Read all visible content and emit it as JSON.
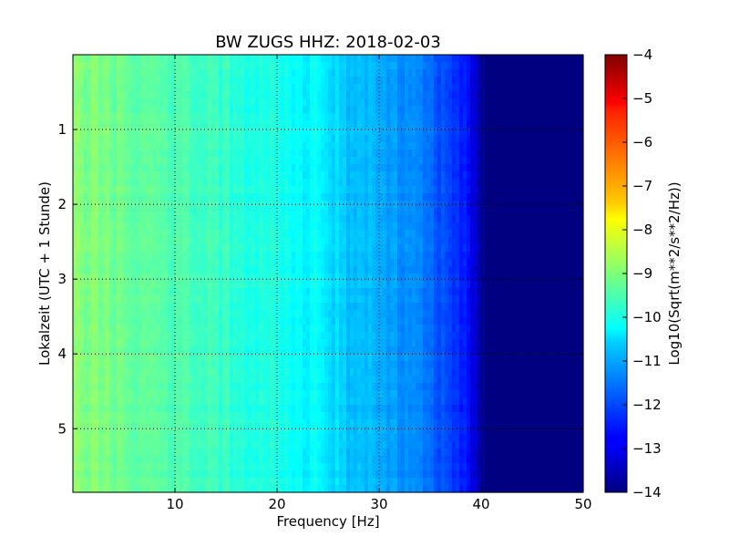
{
  "chart_data": {
    "type": "heatmap",
    "title": "BW ZUGS HHZ: 2018-02-03",
    "xlabel": "Frequency [Hz]",
    "ylabel": "Lokalzeit (UTC + 1 Stunde)",
    "xlim": [
      0,
      50
    ],
    "ylim": [
      5.85,
      0.0
    ],
    "xticks": [
      10,
      20,
      30,
      40,
      50
    ],
    "yticks": [
      1,
      2,
      3,
      4,
      5
    ],
    "grid": true,
    "colormap": "jet",
    "colorbar": {
      "label": "Log10(Sqrt(m**2/s**2/Hz))",
      "range": [
        -14,
        -4
      ],
      "ticks": [
        -4,
        -5,
        -6,
        -7,
        -8,
        -9,
        -10,
        -11,
        -12,
        -13,
        -14
      ]
    },
    "spectrum_profile": {
      "frequency_hz": [
        0,
        2,
        5,
        8,
        10,
        13,
        16,
        20,
        22,
        24,
        25.5,
        27,
        30,
        33,
        35,
        37,
        38.5,
        39.5,
        40.5,
        45,
        50
      ],
      "log10_psd": [
        -8.9,
        -9.0,
        -9.2,
        -9.3,
        -9.45,
        -9.65,
        -9.8,
        -10.0,
        -10.2,
        -10.3,
        -10.6,
        -10.8,
        -11.1,
        -11.4,
        -11.7,
        -12.2,
        -12.6,
        -13.2,
        -14.0,
        -14.0,
        -14.0
      ]
    }
  }
}
